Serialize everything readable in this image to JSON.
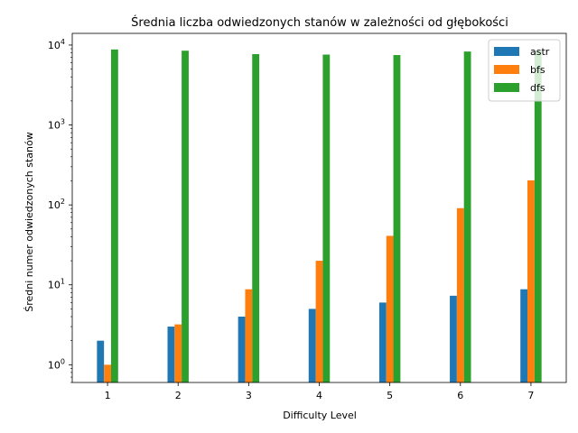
{
  "chart_data": {
    "type": "bar",
    "title": "Średnia liczba odwiedzonych stanów w zależności od głębokości",
    "xlabel": "Difficulty Level",
    "ylabel": "Średni numer odwiedzonych stanów",
    "yscale": "log",
    "ylim": [
      0.6,
      14000
    ],
    "categories": [
      "1",
      "2",
      "3",
      "4",
      "5",
      "6",
      "7"
    ],
    "y_tick_labels": [
      "10^0",
      "10^1",
      "10^2",
      "10^3",
      "10^4"
    ],
    "legend_position": "top-right",
    "grid": false,
    "series": [
      {
        "name": "astr",
        "color": "#1f77b4",
        "values": [
          2,
          3,
          4,
          5,
          6,
          7.3,
          8.8
        ]
      },
      {
        "name": "bfs",
        "color": "#ff7f0e",
        "values": [
          1,
          3.2,
          8.8,
          20,
          41,
          91,
          203
        ]
      },
      {
        "name": "dfs",
        "color": "#2ca02c",
        "values": [
          8800,
          8500,
          7700,
          7600,
          7500,
          8300,
          8500
        ]
      }
    ]
  }
}
